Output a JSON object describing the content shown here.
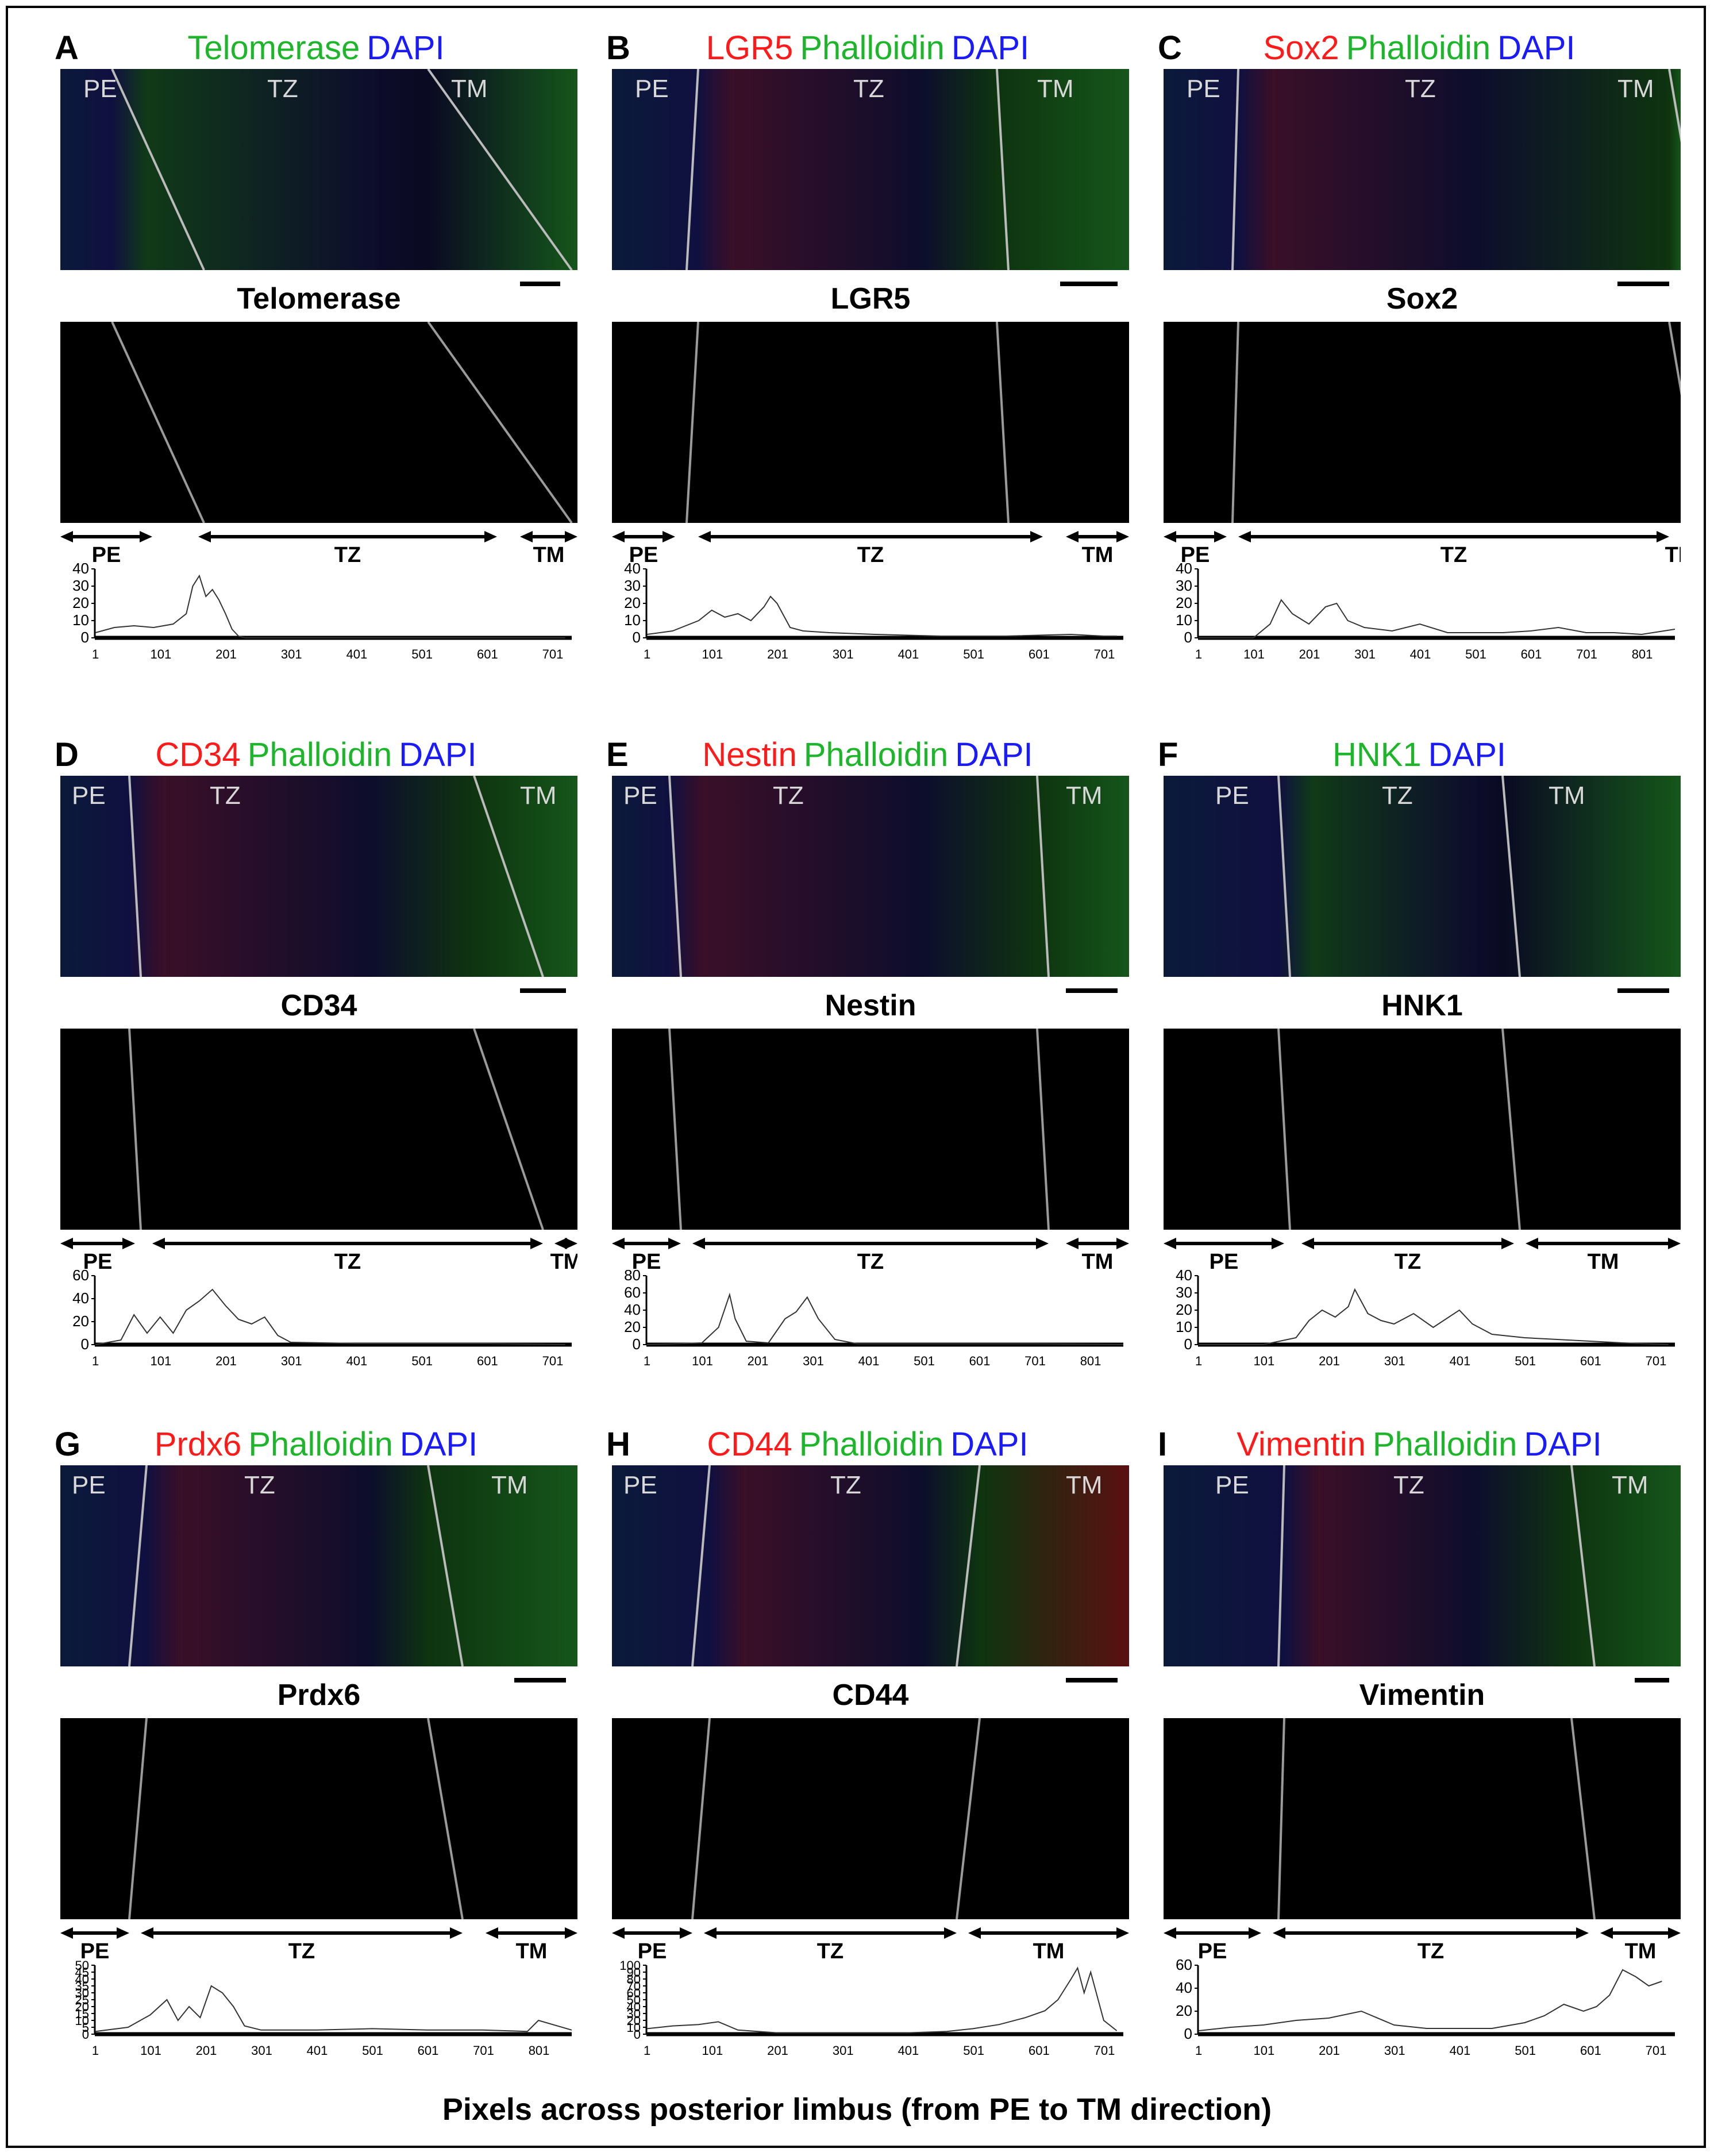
{
  "x_axis_label": "Pixels across posterior limbus (from PE to TM direction)",
  "colors": {
    "green": "#1db52a",
    "red": "#ff1a1a",
    "blue": "#1a1aff"
  },
  "region_labels": [
    "PE",
    "TZ",
    "TM"
  ],
  "panels": [
    {
      "letter": "A",
      "stain": [
        {
          "text": "Telomerase",
          "color": "green"
        },
        {
          "text": "DAPI",
          "color": "blue"
        }
      ],
      "marker": "Telomerase",
      "ylim": [
        0,
        40
      ],
      "yticks": [
        "0",
        "10",
        "20",
        "30",
        "40"
      ],
      "xticks": [
        "1",
        "101",
        "201",
        "301",
        "401",
        "501",
        "601",
        "701"
      ],
      "chart_data": {
        "type": "line",
        "x": [
          1,
          30,
          60,
          90,
          120,
          140,
          150,
          160,
          170,
          180,
          190,
          200,
          210,
          220,
          230,
          260,
          300,
          400,
          500,
          600,
          720
        ],
        "y": [
          3,
          6,
          7,
          6,
          8,
          14,
          30,
          36,
          24,
          28,
          22,
          14,
          5,
          1,
          0,
          0,
          0,
          0,
          0,
          0,
          0
        ],
        "ylim": [
          0,
          40
        ]
      }
    },
    {
      "letter": "B",
      "stain": [
        {
          "text": "LGR5",
          "color": "red"
        },
        {
          "text": "Phalloidin",
          "color": "green"
        },
        {
          "text": "DAPI",
          "color": "blue"
        }
      ],
      "marker": "LGR5",
      "ylim": [
        0,
        40
      ],
      "yticks": [
        "0",
        "10",
        "20",
        "30",
        "40"
      ],
      "xticks": [
        "1",
        "101",
        "201",
        "301",
        "401",
        "501",
        "601",
        "701"
      ],
      "chart_data": {
        "type": "line",
        "x": [
          1,
          40,
          80,
          100,
          120,
          140,
          160,
          180,
          190,
          200,
          220,
          240,
          280,
          350,
          450,
          550,
          650,
          700,
          720
        ],
        "y": [
          2,
          4,
          10,
          16,
          12,
          14,
          10,
          18,
          24,
          20,
          6,
          4,
          3,
          2,
          1,
          1,
          2,
          1,
          1
        ],
        "ylim": [
          0,
          40
        ]
      }
    },
    {
      "letter": "C",
      "stain": [
        {
          "text": "Sox2",
          "color": "red"
        },
        {
          "text": "Phalloidin",
          "color": "green"
        },
        {
          "text": "DAPI",
          "color": "blue"
        }
      ],
      "marker": "Sox2",
      "ylim": [
        0,
        40
      ],
      "yticks": [
        "0",
        "10",
        "20",
        "30",
        "40"
      ],
      "xticks": [
        "1",
        "101",
        "201",
        "301",
        "401",
        "501",
        "601",
        "701",
        "801"
      ],
      "chart_data": {
        "type": "line",
        "x": [
          1,
          100,
          130,
          150,
          170,
          200,
          230,
          250,
          270,
          300,
          350,
          400,
          450,
          500,
          550,
          600,
          650,
          700,
          750,
          800,
          860
        ],
        "y": [
          0,
          0,
          8,
          22,
          14,
          8,
          18,
          20,
          10,
          6,
          4,
          8,
          3,
          3,
          3,
          4,
          6,
          3,
          3,
          2,
          5
        ],
        "ylim": [
          0,
          40
        ]
      }
    },
    {
      "letter": "D",
      "stain": [
        {
          "text": "CD34",
          "color": "red"
        },
        {
          "text": "Phalloidin",
          "color": "green"
        },
        {
          "text": "DAPI",
          "color": "blue"
        }
      ],
      "marker": "CD34",
      "ylim": [
        0,
        60
      ],
      "yticks": [
        "0",
        "20",
        "40",
        "60"
      ],
      "xticks": [
        "1",
        "101",
        "201",
        "301",
        "401",
        "501",
        "601",
        "701"
      ],
      "chart_data": {
        "type": "line",
        "x": [
          1,
          40,
          60,
          80,
          100,
          120,
          140,
          160,
          180,
          200,
          220,
          240,
          260,
          280,
          300,
          400,
          500,
          600,
          720
        ],
        "y": [
          0,
          4,
          26,
          10,
          24,
          10,
          30,
          38,
          48,
          34,
          22,
          18,
          24,
          8,
          2,
          1,
          1,
          1,
          0
        ],
        "ylim": [
          0,
          60
        ]
      }
    },
    {
      "letter": "E",
      "stain": [
        {
          "text": "Nestin",
          "color": "red"
        },
        {
          "text": "Phalloidin",
          "color": "green"
        },
        {
          "text": "DAPI",
          "color": "blue"
        }
      ],
      "marker": "Nestin",
      "ylim": [
        0,
        80
      ],
      "yticks": [
        "0",
        "20",
        "40",
        "60",
        "80"
      ],
      "xticks": [
        "1",
        "101",
        "201",
        "301",
        "401",
        "501",
        "601",
        "701",
        "801"
      ],
      "chart_data": {
        "type": "line",
        "x": [
          1,
          100,
          130,
          150,
          160,
          180,
          220,
          250,
          270,
          290,
          310,
          340,
          380,
          500,
          700,
          860
        ],
        "y": [
          0,
          2,
          20,
          58,
          30,
          4,
          2,
          30,
          38,
          55,
          30,
          6,
          1,
          1,
          1,
          0
        ],
        "ylim": [
          0,
          80
        ]
      }
    },
    {
      "letter": "F",
      "stain": [
        {
          "text": "HNK1",
          "color": "green"
        },
        {
          "text": "DAPI",
          "color": "blue"
        }
      ],
      "marker": "HNK1",
      "ylim": [
        0,
        40
      ],
      "yticks": [
        "0",
        "10",
        "20",
        "30",
        "40"
      ],
      "xticks": [
        "1",
        "101",
        "201",
        "301",
        "401",
        "501",
        "601",
        "701"
      ],
      "chart_data": {
        "type": "line",
        "x": [
          1,
          100,
          150,
          170,
          190,
          210,
          230,
          240,
          260,
          280,
          300,
          330,
          360,
          400,
          420,
          450,
          500,
          550,
          600,
          650,
          720
        ],
        "y": [
          0,
          0,
          4,
          14,
          20,
          16,
          22,
          32,
          18,
          14,
          12,
          18,
          10,
          20,
          12,
          6,
          4,
          3,
          2,
          1,
          0
        ],
        "ylim": [
          0,
          40
        ]
      }
    },
    {
      "letter": "G",
      "stain": [
        {
          "text": "Prdx6",
          "color": "red"
        },
        {
          "text": "Phalloidin",
          "color": "green"
        },
        {
          "text": "DAPI",
          "color": "blue"
        }
      ],
      "marker": "Prdx6",
      "ylim": [
        0,
        50
      ],
      "yticks": [
        "0",
        "5",
        "10",
        "15",
        "20",
        "25",
        "30",
        "35",
        "40",
        "45",
        "50"
      ],
      "xticks": [
        "1",
        "101",
        "201",
        "301",
        "401",
        "501",
        "601",
        "701",
        "801"
      ],
      "chart_data": {
        "type": "line",
        "x": [
          1,
          60,
          100,
          130,
          150,
          170,
          190,
          210,
          230,
          250,
          270,
          300,
          400,
          500,
          600,
          700,
          780,
          800,
          860
        ],
        "y": [
          2,
          5,
          14,
          25,
          10,
          20,
          12,
          35,
          30,
          20,
          6,
          3,
          3,
          4,
          3,
          3,
          2,
          10,
          3
        ],
        "ylim": [
          0,
          50
        ]
      }
    },
    {
      "letter": "H",
      "stain": [
        {
          "text": "CD44",
          "color": "red"
        },
        {
          "text": "Phalloidin",
          "color": "green"
        },
        {
          "text": "DAPI",
          "color": "blue"
        }
      ],
      "marker": "CD44",
      "ylim": [
        0,
        100
      ],
      "yticks": [
        "0",
        "10",
        "20",
        "30",
        "40",
        "50",
        "60",
        "70",
        "80",
        "90",
        "100"
      ],
      "xticks": [
        "1",
        "101",
        "201",
        "301",
        "401",
        "501",
        "601",
        "701"
      ],
      "chart_data": {
        "type": "line",
        "x": [
          1,
          40,
          80,
          110,
          140,
          200,
          300,
          400,
          460,
          500,
          540,
          580,
          610,
          630,
          650,
          660,
          670,
          680,
          700,
          720
        ],
        "y": [
          8,
          12,
          14,
          18,
          6,
          2,
          2,
          2,
          4,
          8,
          14,
          24,
          34,
          50,
          80,
          96,
          60,
          90,
          20,
          5
        ],
        "ylim": [
          0,
          100
        ]
      }
    },
    {
      "letter": "I",
      "stain": [
        {
          "text": "Vimentin",
          "color": "red"
        },
        {
          "text": "Phalloidin",
          "color": "green"
        },
        {
          "text": "DAPI",
          "color": "blue"
        }
      ],
      "marker": "Vimentin",
      "ylim": [
        0,
        60
      ],
      "yticks": [
        "0",
        "20",
        "40",
        "60"
      ],
      "xticks": [
        "1",
        "101",
        "201",
        "301",
        "401",
        "501",
        "601",
        "701"
      ],
      "chart_data": {
        "type": "line",
        "x": [
          1,
          50,
          100,
          150,
          200,
          250,
          300,
          350,
          400,
          450,
          500,
          530,
          560,
          590,
          610,
          630,
          650,
          670,
          690,
          710
        ],
        "y": [
          3,
          6,
          8,
          12,
          14,
          20,
          8,
          5,
          5,
          5,
          10,
          16,
          26,
          20,
          24,
          34,
          56,
          50,
          42,
          46
        ],
        "ylim": [
          0,
          60
        ]
      }
    }
  ]
}
